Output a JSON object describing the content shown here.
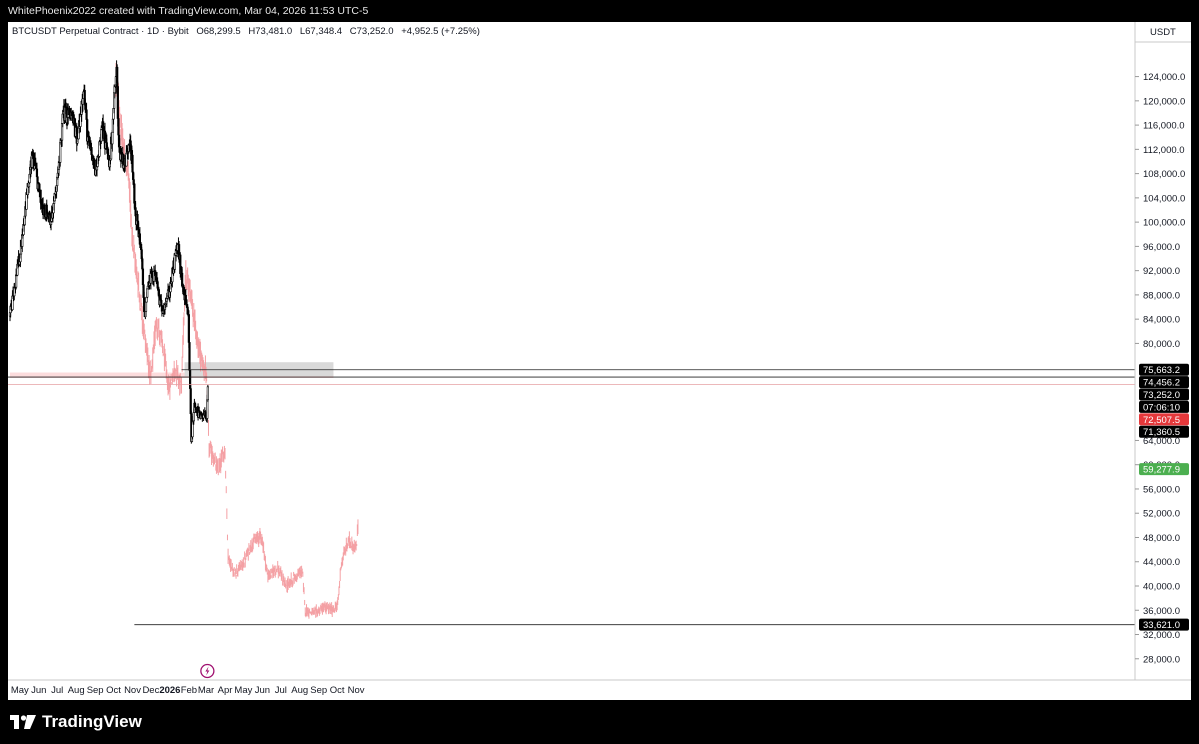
{
  "header": {
    "attribution": "WhitePhoenix2022 created with TradingView.com, Mar 04, 2026 11:53 UTC-5"
  },
  "legend": {
    "symbol": "BTCUSDT Perpetual Contract · 1D · Bybit",
    "open": "O68,299.5",
    "high": "H73,481.0",
    "low": "L67,348.4",
    "close": "C73,252.0",
    "change": "+4,952.5 (+7.25%)"
  },
  "footer": {
    "brand": "TradingView"
  },
  "colors": {
    "candle": "#000000",
    "ghost": "#f4a0a4",
    "zone_red": "#fcdcdd",
    "zone_gray": "#d9d9d9",
    "tag_red": "#e5383b",
    "tag_green": "#4caf50",
    "tag_black": "#000000"
  },
  "chart_data": {
    "type": "candlestick",
    "symbol": "BTCUSDT Perpetual Contract · 1D · Bybit",
    "currency": "USDT",
    "y_ticks": [
      124000,
      120000,
      116000,
      112000,
      108000,
      104000,
      100000,
      96000,
      92000,
      88000,
      84000,
      80000,
      64000,
      60000,
      56000,
      52000,
      48000,
      44000,
      40000,
      36000,
      32000,
      28000
    ],
    "y_tick_labels": [
      "124,000.0",
      "120,000.0",
      "116,000.0",
      "112,000.0",
      "108,000.0",
      "104,000.0",
      "100,000.0",
      "96,000.0",
      "92,000.0",
      "88,000.0",
      "84,000.0",
      "80,000.0",
      "64,000.0",
      "60,000.0",
      "56,000.0",
      "52,000.0",
      "48,000.0",
      "44,000.0",
      "40,000.0",
      "36,000.0",
      "32,000.0",
      "28,000.0"
    ],
    "ylim": [
      24500,
      133000
    ],
    "x_months": [
      "May",
      "Jun",
      "Jul",
      "Aug",
      "Sep",
      "Oct",
      "Nov",
      "Dec",
      "2026",
      "Feb",
      "Mar",
      "Apr",
      "May",
      "Jun",
      "Jul",
      "Aug",
      "Sep",
      "Oct",
      "Nov"
    ],
    "price_tags": [
      {
        "value": 75663.2,
        "label": "75,663.2",
        "color": "#000000"
      },
      {
        "value": 74456.2,
        "label": "74,456.2",
        "color": "#000000"
      },
      {
        "value": 73252.0,
        "label": "73,252.0",
        "color": "#000000"
      },
      {
        "value": 72200,
        "label": "07:06:10",
        "color": "#000000"
      },
      {
        "value": 72507.5,
        "label": "72,507.5",
        "color": "#e5383b"
      },
      {
        "value": 71360.5,
        "label": "71,360.5",
        "color": "#000000"
      },
      {
        "value": 59277.9,
        "label": "59,277.9",
        "color": "#4caf50"
      },
      {
        "value": 33621.0,
        "label": "33,621.0",
        "color": "#000000"
      }
    ],
    "horizontal_lines": [
      75663.2,
      74456.2,
      73252.0,
      33621.0
    ],
    "zones": [
      {
        "name": "red-zone",
        "from_date": "2025-04-15",
        "to_date": "2026-09-25",
        "low": 74300,
        "high": 75200,
        "color": "#fcdcdd"
      },
      {
        "name": "gray-zone",
        "from_date": "2026-01-25",
        "to_date": "2026-09-25",
        "low": 74600,
        "high": 76900,
        "color": "#d9d9d9"
      }
    ],
    "candles_daily_closes": {
      "start": "2025-04-15",
      "anchors": [
        [
          "2025-04-15",
          84500
        ],
        [
          "2025-05-01",
          94500
        ],
        [
          "2025-05-12",
          104000
        ],
        [
          "2025-05-22",
          111000
        ],
        [
          "2025-06-05",
          103000
        ],
        [
          "2025-06-22",
          100500
        ],
        [
          "2025-07-01",
          106500
        ],
        [
          "2025-07-11",
          118000
        ],
        [
          "2025-07-25",
          117500
        ],
        [
          "2025-08-03",
          113500
        ],
        [
          "2025-08-13",
          122500
        ],
        [
          "2025-08-20",
          113500
        ],
        [
          "2025-09-01",
          108500
        ],
        [
          "2025-09-13",
          115500
        ],
        [
          "2025-09-25",
          109500
        ],
        [
          "2025-10-03",
          122000
        ],
        [
          "2025-10-06",
          124800
        ],
        [
          "2025-10-10",
          112000
        ],
        [
          "2025-10-20",
          109500
        ],
        [
          "2025-10-28",
          114500
        ],
        [
          "2025-11-05",
          102000
        ],
        [
          "2025-11-14",
          96500
        ],
        [
          "2025-11-21",
          84500
        ],
        [
          "2025-11-28",
          90500
        ],
        [
          "2025-12-08",
          91500
        ],
        [
          "2025-12-18",
          85500
        ],
        [
          "2025-12-31",
          88500
        ],
        [
          "2026-01-14",
          96500
        ],
        [
          "2026-01-20",
          90500
        ],
        [
          "2026-01-31",
          84000
        ],
        [
          "2026-02-05",
          64000
        ],
        [
          "2026-02-10",
          70000
        ],
        [
          "2026-02-20",
          67500
        ],
        [
          "2026-03-02",
          68299.5
        ],
        [
          "2026-03-04",
          73252.0
        ]
      ]
    },
    "ghost_overlay_daily_closes": {
      "start": "2025-10-05",
      "anchors": [
        [
          "2025-10-05",
          124000
        ],
        [
          "2025-10-15",
          113000
        ],
        [
          "2025-10-25",
          108000
        ],
        [
          "2025-11-02",
          96000
        ],
        [
          "2025-11-10",
          90000
        ],
        [
          "2025-11-20",
          82000
        ],
        [
          "2025-12-01",
          74000
        ],
        [
          "2025-12-10",
          84000
        ],
        [
          "2025-12-20",
          79500
        ],
        [
          "2025-12-30",
          72500
        ],
        [
          "2026-01-10",
          76000
        ],
        [
          "2026-01-20",
          73000
        ],
        [
          "2026-01-26",
          91000
        ],
        [
          "2026-02-05",
          88000
        ],
        [
          "2026-02-15",
          80000
        ],
        [
          "2026-03-01",
          75000
        ],
        [
          "2026-03-06",
          63000
        ],
        [
          "2026-03-20",
          59000
        ],
        [
          "2026-04-01",
          62500
        ],
        [
          "2026-04-06",
          45000
        ],
        [
          "2026-04-15",
          42000
        ],
        [
          "2026-04-30",
          43500
        ],
        [
          "2026-05-15",
          47000
        ],
        [
          "2026-05-30",
          48500
        ],
        [
          "2026-06-10",
          41500
        ],
        [
          "2026-06-25",
          43000
        ],
        [
          "2026-07-10",
          40000
        ],
        [
          "2026-07-25",
          41500
        ],
        [
          "2026-08-05",
          42500
        ],
        [
          "2026-08-10",
          36000
        ],
        [
          "2026-08-25",
          35500
        ],
        [
          "2026-09-10",
          36500
        ],
        [
          "2026-09-25",
          36000
        ],
        [
          "2026-10-02",
          37000
        ],
        [
          "2026-10-08",
          44000
        ],
        [
          "2026-10-20",
          47500
        ],
        [
          "2026-11-01",
          46000
        ],
        [
          "2026-11-04",
          50000
        ]
      ]
    }
  }
}
